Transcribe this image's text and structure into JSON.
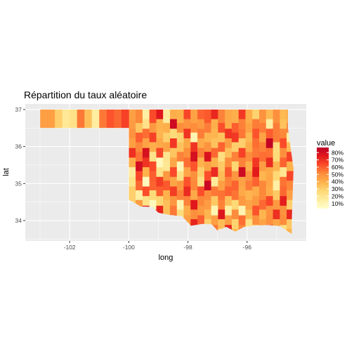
{
  "title": "Répartition du taux aléatoire",
  "chart_data": {
    "type": "heatmap",
    "title": "Répartition du taux aléatoire",
    "xlabel": "long",
    "ylabel": "lat",
    "xlim": [
      -103.5,
      -94.0
    ],
    "ylim": [
      33.45,
      37.15
    ],
    "x_ticks": [
      -102,
      -100,
      -98,
      -96
    ],
    "x_tick_labels": [
      "-102",
      "-100",
      "-98",
      "-96"
    ],
    "y_ticks": [
      34,
      35,
      36,
      37
    ],
    "y_tick_labels": [
      "34",
      "35",
      "36",
      "37"
    ],
    "grid": true,
    "legend": {
      "title": "value",
      "position": "right",
      "breaks": [
        0.8,
        0.7,
        0.6,
        0.5,
        0.4,
        0.3,
        0.2,
        0.1
      ],
      "labels": [
        "80%",
        "70%",
        "60%",
        "50%",
        "40%",
        "30%",
        "20%",
        "10%"
      ],
      "range": [
        0.03,
        0.87
      ]
    },
    "color_scale": [
      "#ffffcc",
      "#ffeda0",
      "#fed976",
      "#feb24c",
      "#fd8d3c",
      "#fc4e2a",
      "#e31a1c",
      "#bd0026"
    ],
    "panel_background": "#ebebeb",
    "grid_color": "#ffffff",
    "region": "Oklahoma counties",
    "outline_lonlat": [
      [
        -103.0,
        37.0
      ],
      [
        -94.62,
        37.0
      ],
      [
        -94.62,
        36.5
      ],
      [
        -94.43,
        35.4
      ],
      [
        -94.49,
        34.0
      ],
      [
        -94.49,
        33.64
      ],
      [
        -94.9,
        33.85
      ],
      [
        -95.3,
        33.88
      ],
      [
        -95.8,
        33.86
      ],
      [
        -96.1,
        33.83
      ],
      [
        -96.4,
        33.7
      ],
      [
        -96.7,
        33.83
      ],
      [
        -97.0,
        33.73
      ],
      [
        -97.2,
        33.9
      ],
      [
        -97.5,
        33.91
      ],
      [
        -97.9,
        33.86
      ],
      [
        -98.2,
        34.12
      ],
      [
        -98.6,
        34.15
      ],
      [
        -99.0,
        34.21
      ],
      [
        -99.2,
        34.37
      ],
      [
        -99.6,
        34.38
      ],
      [
        -99.84,
        34.5
      ],
      [
        -100.0,
        34.56
      ],
      [
        -100.0,
        36.5
      ],
      [
        -103.0,
        36.5
      ]
    ],
    "county_columns": [
      {
        "values": [
          0.45,
          0.46,
          0.49,
          0.45,
          0.7,
          0.4,
          0.16,
          0.21,
          0.3,
          0.3,
          0.27,
          0.39,
          0.2
        ]
      },
      {
        "values": [
          0.52,
          0.33,
          0.6,
          0.52,
          0.56,
          0.8,
          0.65,
          0.58,
          0.14,
          0.46,
          0.46,
          0.49,
          0.47
        ]
      },
      {
        "values": [
          0.14,
          0.22,
          0.57,
          0.44,
          0.79,
          0.69,
          0.39,
          0.07,
          0.63,
          0.22,
          0.78,
          0.53,
          0.35
        ]
      },
      {
        "values": [
          0.64,
          0.47,
          0.66,
          0.4,
          0.22,
          0.64,
          0.6,
          0.59,
          0.26,
          0.08,
          0.61,
          0.44,
          0.41
        ]
      },
      {
        "values": [
          0.76,
          0.39,
          0.38,
          0.42,
          0.65,
          0.08,
          0.22,
          0.67,
          0.6,
          0.28,
          0.73,
          0.33,
          0.49
        ]
      },
      {
        "values": [
          0.16,
          0.4,
          0.3,
          0.44,
          0.2,
          0.19,
          0.47,
          0.61,
          0.39,
          0.35,
          0.35,
          0.47,
          0.57
        ]
      },
      {
        "values": [
          0.4,
          0.82,
          0.26,
          0.68,
          0.33,
          0.43,
          0.64,
          0.43,
          0.67,
          0.48,
          0.55,
          0.64,
          0.52
        ]
      },
      {
        "values": [
          0.39,
          0.51,
          0.29,
          0.34,
          0.53,
          0.09,
          0.23,
          0.48,
          0.53,
          0.11,
          0.25,
          0.39,
          0.48
        ]
      },
      {
        "values": [
          0.65,
          0.49,
          0.69,
          0.42,
          0.5,
          0.57,
          0.43,
          0.62,
          0.71,
          0.53,
          0.41,
          0.45,
          0.35
        ]
      },
      {
        "values": [
          0.44,
          0.51,
          0.1,
          0.69,
          0.8,
          0.62,
          0.5,
          0.52,
          0.42,
          0.76,
          0.5,
          0.73,
          0.77
        ]
      },
      {
        "values": [
          0.59,
          0.47,
          0.54,
          0.42,
          0.53,
          0.39,
          0.3,
          0.23,
          0.63,
          0.52,
          0.47,
          0.6,
          0.38
        ]
      },
      {
        "values": [
          0.61,
          0.54,
          0.38,
          0.49,
          0.78,
          0.44,
          0.63,
          0.83,
          0.51,
          0.46,
          0.38,
          0.3,
          0.18
        ]
      },
      {
        "values": [
          0.72,
          0.4,
          0.38,
          0.34,
          0.58,
          0.39,
          0.71,
          0.17,
          0.55,
          0.32,
          0.1,
          0.45,
          0.55
        ]
      },
      {
        "values": [
          0.53,
          0.63,
          0.34,
          0.59,
          0.24,
          0.32,
          0.36,
          0.45,
          0.56,
          0.53,
          0.77,
          0.36,
          0.14
        ]
      },
      {
        "values": [
          0.42,
          0.41,
          0.69,
          0.46,
          0.35,
          0.51,
          0.61,
          0.53,
          0.59,
          0.35,
          0.14,
          0.45,
          0.73
        ]
      },
      {
        "values": [
          0.4,
          0.6,
          0.68,
          0.3,
          0.53,
          0.28,
          0.48,
          0.59,
          0.56,
          0.27,
          0.51,
          0.29,
          0.37
        ]
      },
      {
        "values": [
          0.68,
          0.53,
          0.55,
          0.3,
          0.66,
          0.53,
          0.82,
          0.44,
          0.42,
          0.47,
          0.11,
          0.57,
          0.52
        ]
      },
      {
        "values": [
          0.41,
          0.44,
          0.37,
          0.41,
          0.51,
          0.4,
          0.49,
          0.54,
          0.38,
          0.44,
          0.37,
          0.23,
          0.39
        ]
      },
      {
        "values": [
          0.29,
          0.54,
          0.62,
          0.57,
          0.55,
          0.68,
          0.75,
          0.59,
          0.41,
          0.47,
          0.62,
          0.5,
          0.18
        ]
      },
      {
        "values": [
          0.49,
          0.54,
          0.44,
          0.53,
          0.57,
          0.46,
          0.38,
          0.52,
          0.52,
          0.58,
          0.38,
          0.44,
          0.47
        ]
      },
      {
        "values": [
          0.37,
          0.15,
          0.6,
          0.85,
          0.56,
          0.71,
          0.42,
          0.43,
          0.41,
          0.65,
          0.49,
          0.5,
          0.76
        ]
      },
      {
        "values": [
          0.5,
          0.54,
          0.54,
          0.25,
          0.26,
          0.38,
          0.27,
          0.14,
          0.32,
          0.47,
          0.7,
          0.43,
          0.27
        ]
      },
      {
        "values": [
          0.37,
          0.34,
          0.52,
          0.64,
          0.5,
          0.59,
          0.19,
          0.56,
          0.58,
          0.74,
          0.49,
          0.51,
          0.24
        ]
      },
      {
        "values": [
          0.42,
          0.53,
          0.14,
          0.36,
          0.66,
          0.39,
          0.65,
          0.52,
          0.45,
          0.3,
          0.72,
          0.32,
          0.39
        ]
      }
    ],
    "panhandle_values": [
      0.45,
      0.45,
      0.3,
      0.18,
      0.22,
      0.55,
      0.35,
      0.15,
      0.55,
      0.62,
      0.58,
      0.66
    ]
  }
}
